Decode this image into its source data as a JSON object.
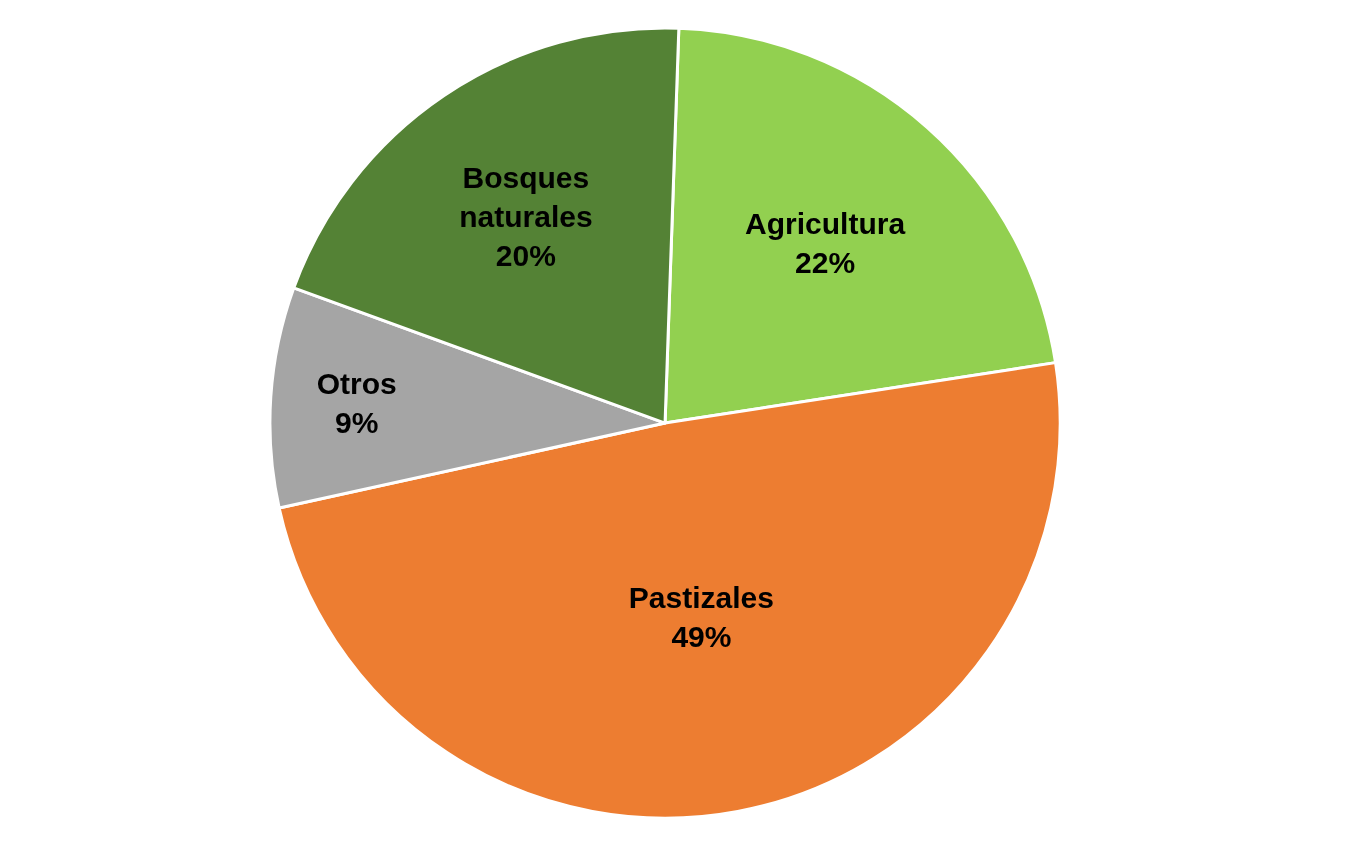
{
  "chart_data": {
    "type": "pie",
    "categories": [
      "Agricultura",
      "Pastizales",
      "Otros",
      "Bosques naturales"
    ],
    "values": [
      22,
      49,
      9,
      20
    ],
    "value_labels": [
      "22%",
      "49%",
      "9%",
      "20%"
    ],
    "colors": [
      "#92d050",
      "#ed7d31",
      "#a5a5a5",
      "#548235"
    ],
    "legend": false
  }
}
